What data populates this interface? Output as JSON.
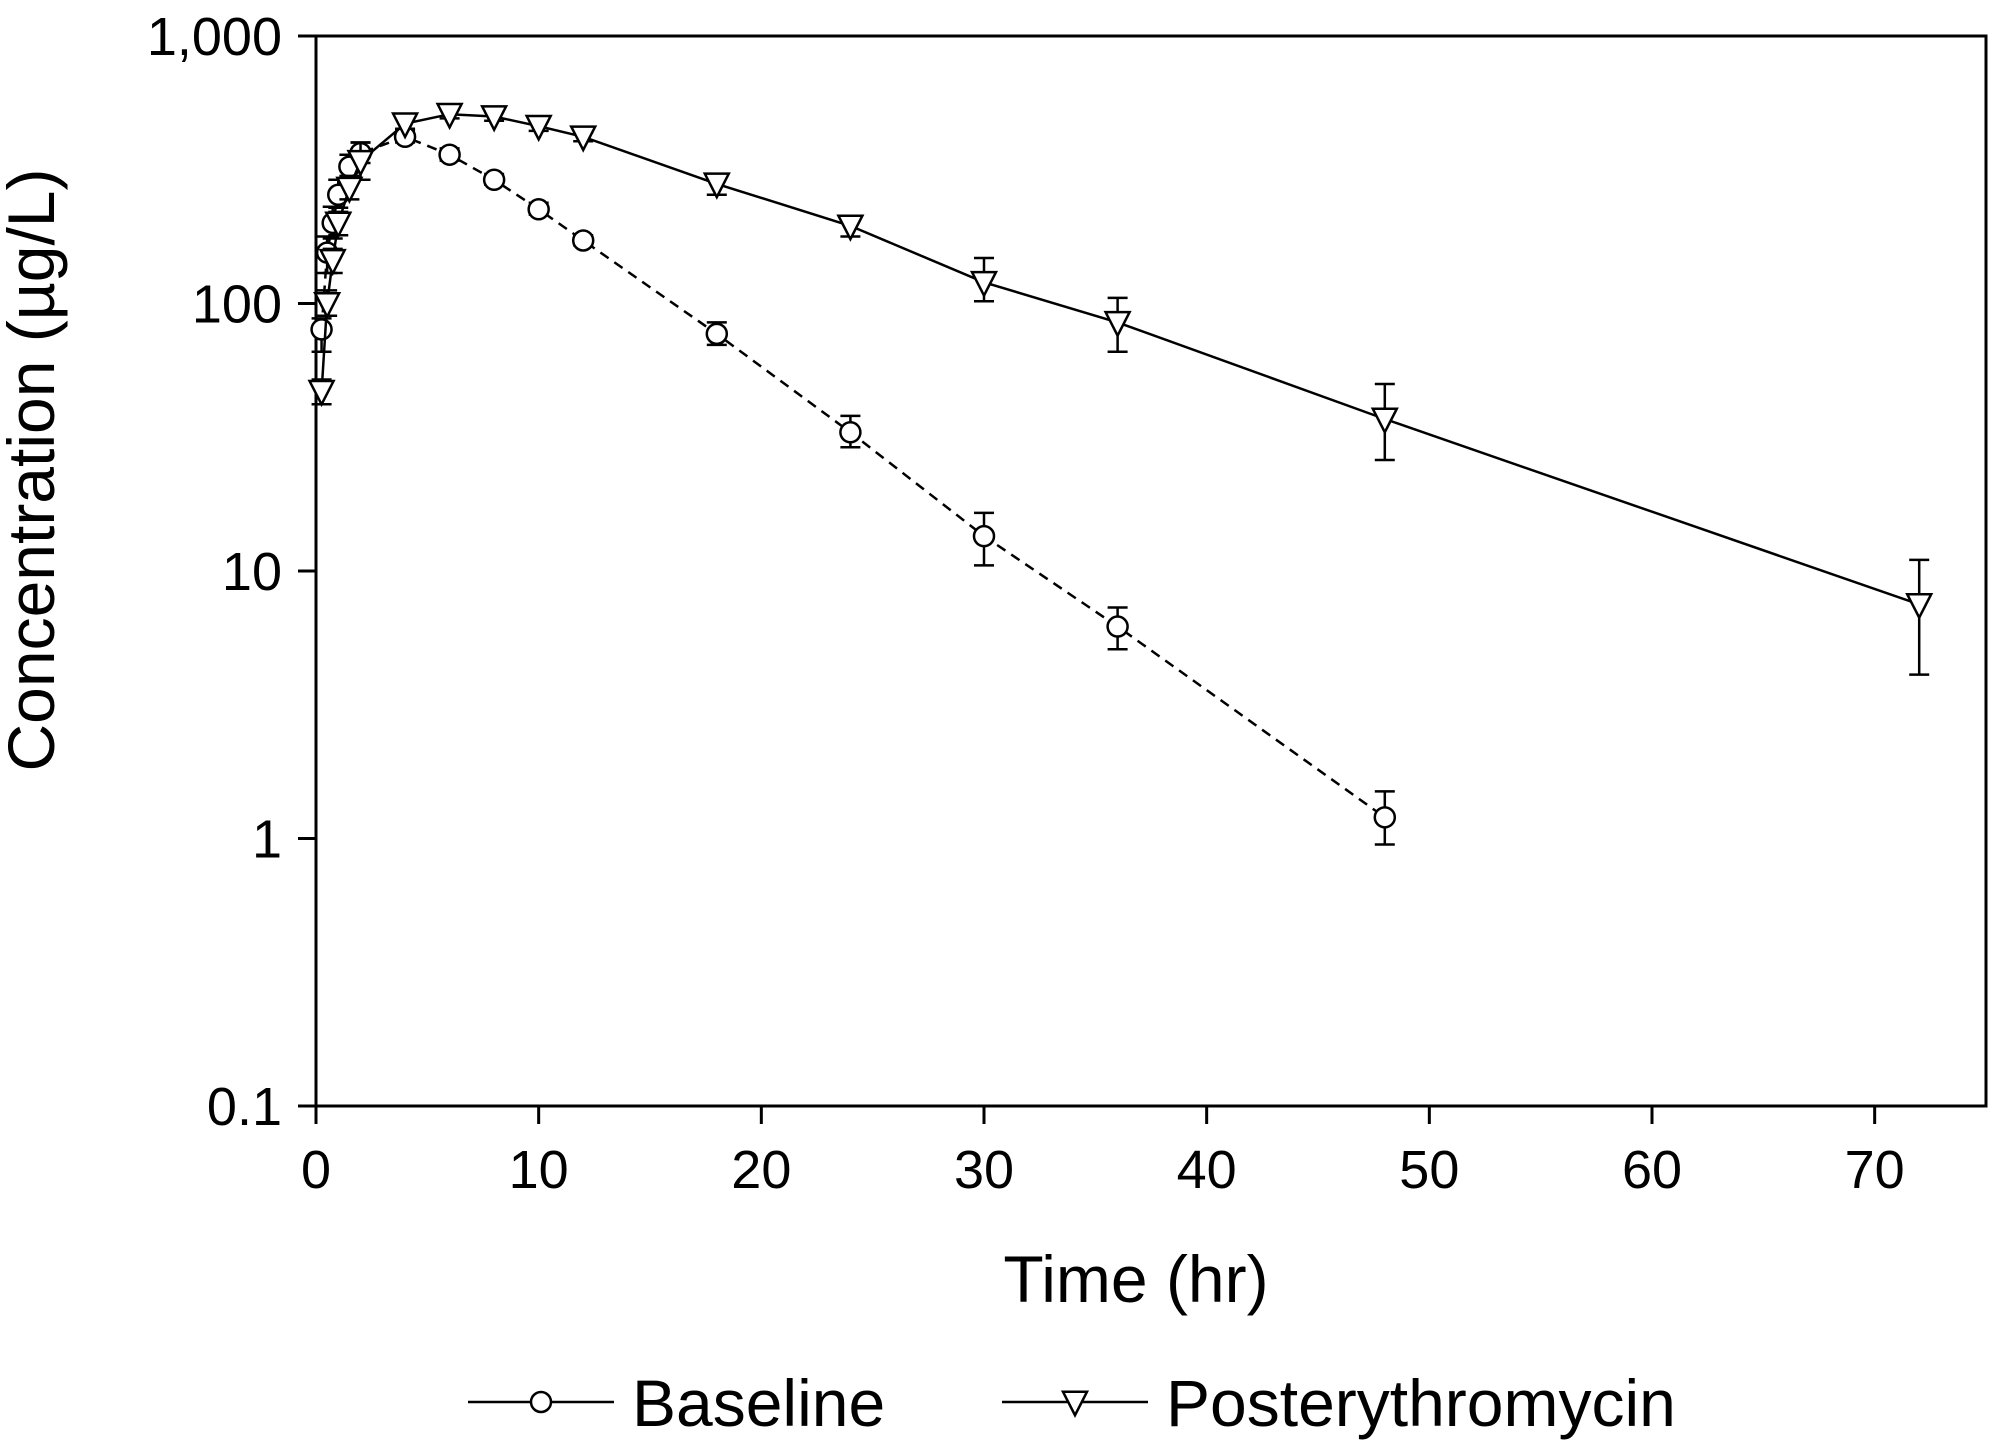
{
  "chart_data": {
    "type": "line",
    "title": "",
    "xlabel": "Time (hr)",
    "ylabel": "Concentration (µg/L)",
    "xlim": [
      0,
      75
    ],
    "ylim": [
      0.1,
      1000
    ],
    "yscale": "log",
    "xticks": [
      0,
      10,
      20,
      30,
      40,
      50,
      60,
      70
    ],
    "xtick_labels": [
      "0",
      "10",
      "20",
      "30",
      "40",
      "50",
      "60",
      "70"
    ],
    "yticks": [
      0.1,
      1,
      10,
      100,
      1000
    ],
    "ytick_labels": [
      "0.1",
      "1",
      "10",
      "100",
      "1,000"
    ],
    "grid": false,
    "legend_position": "bottom",
    "series": [
      {
        "name": "Baseline",
        "marker": "circle",
        "line_style": "dashed",
        "x": [
          0.25,
          0.5,
          0.75,
          1,
          1.5,
          2,
          4,
          6,
          8,
          10,
          12,
          18,
          24,
          30,
          36,
          48
        ],
        "y": [
          80,
          155,
          200,
          255,
          325,
          365,
          420,
          360,
          290,
          225,
          172,
          77,
          33,
          13.5,
          6.2,
          1.2
        ],
        "err_upper": [
          88,
          178,
          230,
          290,
          360,
          400,
          445,
          380,
          305,
          238,
          180,
          85,
          38,
          16.5,
          7.3,
          1.5
        ],
        "err_lower": [
          66,
          130,
          175,
          228,
          295,
          335,
          400,
          342,
          278,
          215,
          165,
          70,
          29,
          10.5,
          5.1,
          0.95
        ]
      },
      {
        "name": "Posterythromycin",
        "marker": "triangle-down",
        "line_style": "solid",
        "x": [
          0.25,
          0.5,
          0.75,
          1,
          1.5,
          2,
          4,
          6,
          8,
          10,
          12,
          18,
          24,
          30,
          36,
          48,
          72
        ],
        "y": [
          47,
          100,
          145,
          200,
          270,
          340,
          470,
          510,
          500,
          460,
          420,
          280,
          195,
          120,
          85,
          37,
          7.5
        ],
        "err_upper": [
          52,
          112,
          160,
          220,
          300,
          400,
          490,
          530,
          520,
          478,
          436,
          305,
          210,
          148,
          105,
          50,
          11
        ],
        "err_lower": [
          42,
          90,
          130,
          180,
          245,
          290,
          450,
          492,
          482,
          442,
          404,
          255,
          178,
          102,
          66,
          26,
          4.1
        ]
      }
    ]
  }
}
